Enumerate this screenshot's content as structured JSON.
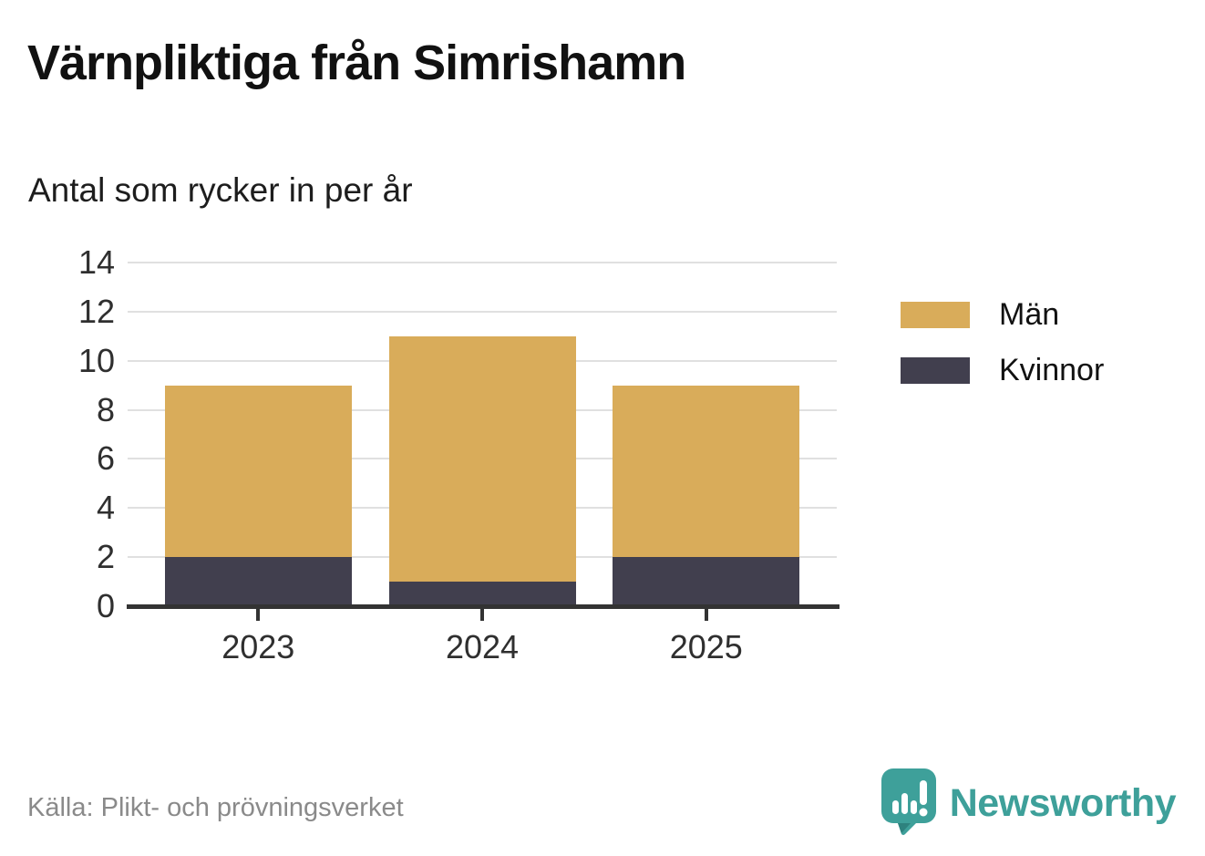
{
  "header": {
    "title": "Värnpliktiga från Simrishamn",
    "subtitle": "Antal som rycker in per år"
  },
  "footer": {
    "source": "Källa: Plikt- och prövningsverket",
    "brand_name": "Newsworthy",
    "brand_color": "#3ea09a",
    "brand_icon": "newsworthy-speech-bubble-chart-icon"
  },
  "colors": {
    "men": "#d9ac5a",
    "women": "#413f4e",
    "gridline": "#e0e0e0",
    "axis": "#333333",
    "tick_text": "#2f2f2f",
    "source_text": "#8a8a8a"
  },
  "chart_data": {
    "type": "bar",
    "stacked": true,
    "title": "Värnpliktiga från Simrishamn",
    "subtitle": "Antal som rycker in per år",
    "categories": [
      "2023",
      "2024",
      "2025"
    ],
    "series": [
      {
        "name": "Män",
        "color": "#d9ac5a",
        "values": [
          7,
          10,
          7
        ]
      },
      {
        "name": "Kvinnor",
        "color": "#413f4e",
        "values": [
          2,
          1,
          2
        ]
      }
    ],
    "stack_order_bottom_to_top": [
      "Kvinnor",
      "Män"
    ],
    "totals": [
      9,
      11,
      9
    ],
    "xlabel": "",
    "ylabel": "",
    "ylim": [
      0,
      14
    ],
    "yticks": [
      0,
      2,
      4,
      6,
      8,
      10,
      12,
      14
    ],
    "grid": true,
    "legend_position": "right"
  }
}
